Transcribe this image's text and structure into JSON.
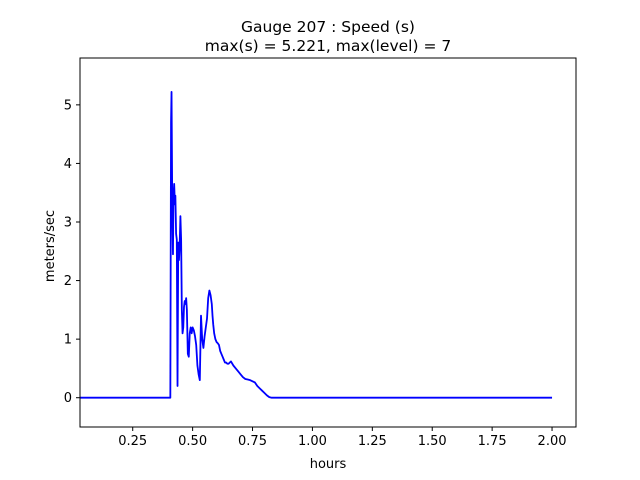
{
  "chart_data": {
    "type": "line",
    "title_lines": [
      "Gauge 207 : Speed (s)",
      "max(s) =   5.221,    max(level) = 7"
    ],
    "xlabel": "hours",
    "ylabel": "meters/sec",
    "xlim": [
      0.03,
      2.1
    ],
    "ylim": [
      -0.5,
      5.8
    ],
    "x_ticks": [
      0.25,
      0.5,
      0.75,
      1.0,
      1.25,
      1.5,
      1.75,
      2.0
    ],
    "x_tick_labels": [
      "0.25",
      "0.50",
      "0.75",
      "1.00",
      "1.25",
      "1.50",
      "1.75",
      "2.00"
    ],
    "y_ticks": [
      0,
      1,
      2,
      3,
      4,
      5
    ],
    "y_tick_labels": [
      "0",
      "1",
      "2",
      "3",
      "4",
      "5"
    ],
    "grid": false,
    "series": [
      {
        "color": "#0000ff",
        "x": [
          0.0,
          0.4,
          0.405,
          0.407,
          0.41,
          0.412,
          0.415,
          0.418,
          0.42,
          0.423,
          0.426,
          0.428,
          0.431,
          0.434,
          0.437,
          0.44,
          0.443,
          0.446,
          0.449,
          0.452,
          0.455,
          0.458,
          0.461,
          0.464,
          0.467,
          0.47,
          0.473,
          0.476,
          0.48,
          0.484,
          0.488,
          0.492,
          0.496,
          0.5,
          0.505,
          0.51,
          0.515,
          0.52,
          0.525,
          0.53,
          0.535,
          0.54,
          0.545,
          0.55,
          0.555,
          0.56,
          0.565,
          0.57,
          0.575,
          0.58,
          0.583,
          0.586,
          0.59,
          0.595,
          0.6,
          0.605,
          0.61,
          0.615,
          0.62,
          0.625,
          0.63,
          0.635,
          0.64,
          0.645,
          0.65,
          0.66,
          0.67,
          0.68,
          0.69,
          0.7,
          0.71,
          0.72,
          0.73,
          0.74,
          0.75,
          0.76,
          0.77,
          0.78,
          0.79,
          0.8,
          0.81,
          0.82,
          0.83,
          0.84,
          0.85,
          0.86,
          0.87,
          0.88,
          0.89,
          0.9,
          0.91,
          0.92,
          0.95,
          1.0,
          1.25,
          1.5,
          1.75,
          2.0
        ],
        "y": [
          0.0,
          0.0,
          0.0,
          0.0,
          4.7,
          5.221,
          3.3,
          2.45,
          3.4,
          3.65,
          3.3,
          3.45,
          2.8,
          2.7,
          0.2,
          2.65,
          2.35,
          2.6,
          3.1,
          2.7,
          1.5,
          1.1,
          1.2,
          1.55,
          1.65,
          1.6,
          1.7,
          1.5,
          0.75,
          0.7,
          1.1,
          1.2,
          1.1,
          1.2,
          1.15,
          1.05,
          0.9,
          0.55,
          0.4,
          0.3,
          1.4,
          1.0,
          0.85,
          1.05,
          1.2,
          1.35,
          1.7,
          1.83,
          1.75,
          1.6,
          1.4,
          1.25,
          1.1,
          1.0,
          0.95,
          0.93,
          0.9,
          0.8,
          0.75,
          0.7,
          0.65,
          0.6,
          0.6,
          0.58,
          0.58,
          0.62,
          0.55,
          0.5,
          0.45,
          0.4,
          0.35,
          0.32,
          0.31,
          0.3,
          0.28,
          0.26,
          0.2,
          0.16,
          0.12,
          0.08,
          0.04,
          0.01,
          0.0,
          0.0,
          0.0,
          0.0,
          0.0,
          0.0,
          0.0,
          0.0,
          0.0,
          0.0,
          0.0,
          0.0,
          0.0,
          0.0,
          0.0,
          0.0
        ]
      }
    ]
  }
}
